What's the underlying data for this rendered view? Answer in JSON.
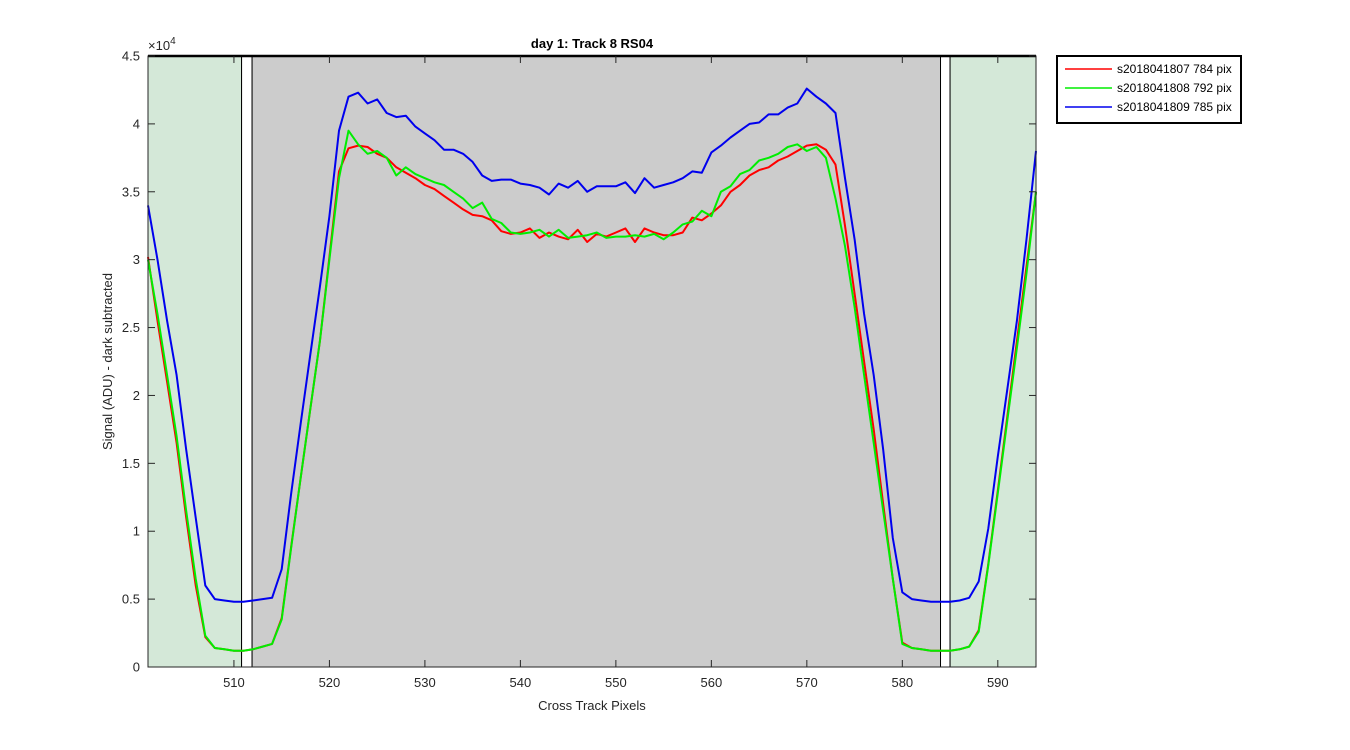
{
  "chart_data": {
    "type": "line",
    "title": "day 1: Track 8  RS04",
    "xlabel": "Cross Track Pixels",
    "ylabel": "Signal (ADU) - dark subtracted",
    "y_exponent_label": "×10",
    "y_exponent": "4",
    "xlim": [
      501,
      594
    ],
    "ylim": [
      0,
      45000
    ],
    "xticks": [
      510,
      520,
      530,
      540,
      550,
      560,
      570,
      580,
      590
    ],
    "yticks": [
      0,
      5000,
      10000,
      15000,
      20000,
      25000,
      30000,
      35000,
      40000,
      45000
    ],
    "ytick_labels": [
      "0",
      "0.5",
      "1",
      "1.5",
      "2",
      "2.5",
      "3",
      "3.5",
      "4",
      "4.5"
    ],
    "grid": false,
    "legend_position": "outside-top-right",
    "regions": [
      {
        "x0": 501,
        "x1": 510.8,
        "color": "#d4e8d8"
      },
      {
        "x0": 510.8,
        "x1": 511.9,
        "color": "#ffffff"
      },
      {
        "x0": 511.9,
        "x1": 584.0,
        "color": "#cccccc"
      },
      {
        "x0": 584.0,
        "x1": 585.0,
        "color": "#ffffff"
      },
      {
        "x0": 585.0,
        "x1": 594,
        "color": "#d4e8d8"
      }
    ],
    "series": [
      {
        "name": "s2018041807 784 pix",
        "color": "#ff0000",
        "x": [
          501,
          502,
          503,
          504,
          505,
          506,
          507,
          508,
          509,
          510,
          511,
          512,
          513,
          514,
          515,
          516,
          517,
          518,
          519,
          520,
          521,
          522,
          523,
          524,
          525,
          526,
          527,
          528,
          529,
          530,
          531,
          532,
          533,
          534,
          535,
          536,
          537,
          538,
          539,
          540,
          541,
          542,
          543,
          544,
          545,
          546,
          547,
          548,
          549,
          550,
          551,
          552,
          553,
          554,
          555,
          556,
          557,
          558,
          559,
          560,
          561,
          562,
          563,
          564,
          565,
          566,
          567,
          568,
          569,
          570,
          571,
          572,
          573,
          574,
          575,
          576,
          577,
          578,
          579,
          580,
          581,
          582,
          583,
          584,
          585,
          586,
          587,
          588,
          589,
          590,
          591,
          592,
          593,
          594
        ],
        "y": [
          30200,
          25500,
          21000,
          16500,
          11000,
          6000,
          2200,
          1400,
          1300,
          1200,
          1200,
          1300,
          1500,
          1700,
          3600,
          8900,
          14000,
          19000,
          24000,
          30200,
          36500,
          38200,
          38400,
          38300,
          37800,
          37500,
          36800,
          36400,
          36000,
          35500,
          35200,
          34700,
          34200,
          33700,
          33300,
          33200,
          32900,
          32100,
          31900,
          32000,
          32300,
          31600,
          32000,
          31700,
          31500,
          32200,
          31300,
          31900,
          31700,
          32000,
          32300,
          31300,
          32300,
          32000,
          31800,
          31800,
          32000,
          33100,
          32900,
          33400,
          34000,
          35000,
          35500,
          36200,
          36600,
          36800,
          37300,
          37600,
          38000,
          38400,
          38500,
          38100,
          37000,
          32500,
          27500,
          22500,
          17500,
          12000,
          6500,
          1800,
          1400,
          1300,
          1200,
          1200,
          1200,
          1300,
          1500,
          2700,
          7600,
          13000,
          18500,
          24000,
          29500,
          35000
        ]
      },
      {
        "name": "s2018041808 792 pix",
        "color": "#00ee00",
        "x": [
          501,
          502,
          503,
          504,
          505,
          506,
          507,
          508,
          509,
          510,
          511,
          512,
          513,
          514,
          515,
          516,
          517,
          518,
          519,
          520,
          521,
          522,
          523,
          524,
          525,
          526,
          527,
          528,
          529,
          530,
          531,
          532,
          533,
          534,
          535,
          536,
          537,
          538,
          539,
          540,
          541,
          542,
          543,
          544,
          545,
          546,
          547,
          548,
          549,
          550,
          551,
          552,
          553,
          554,
          555,
          556,
          557,
          558,
          559,
          560,
          561,
          562,
          563,
          564,
          565,
          566,
          567,
          568,
          569,
          570,
          571,
          572,
          573,
          574,
          575,
          576,
          577,
          578,
          579,
          580,
          581,
          582,
          583,
          584,
          585,
          586,
          587,
          588,
          589,
          590,
          591,
          592,
          593,
          594
        ],
        "y": [
          30000,
          26000,
          21500,
          17000,
          11500,
          6500,
          2300,
          1400,
          1300,
          1200,
          1200,
          1300,
          1500,
          1700,
          3500,
          8800,
          14000,
          19000,
          24000,
          30000,
          36000,
          39500,
          38500,
          37800,
          38000,
          37500,
          36200,
          36800,
          36300,
          36000,
          35700,
          35500,
          35000,
          34500,
          33800,
          34200,
          33000,
          32700,
          32000,
          31900,
          32000,
          32200,
          31700,
          32200,
          31600,
          31700,
          31800,
          32000,
          31600,
          31700,
          31700,
          31800,
          31700,
          31900,
          31500,
          32000,
          32600,
          32800,
          33600,
          33200,
          35000,
          35400,
          36300,
          36600,
          37300,
          37500,
          37800,
          38300,
          38500,
          38000,
          38300,
          37500,
          34500,
          31000,
          26500,
          21500,
          16500,
          11500,
          6500,
          1700,
          1400,
          1300,
          1200,
          1200,
          1200,
          1300,
          1500,
          2600,
          7500,
          12800,
          18200,
          23500,
          29000,
          35000
        ]
      },
      {
        "name": "s2018041809 785 pix",
        "color": "#0000ee",
        "x": [
          501,
          502,
          503,
          504,
          505,
          506,
          507,
          508,
          509,
          510,
          511,
          512,
          513,
          514,
          515,
          516,
          517,
          518,
          519,
          520,
          521,
          522,
          523,
          524,
          525,
          526,
          527,
          528,
          529,
          530,
          531,
          532,
          533,
          534,
          535,
          536,
          537,
          538,
          539,
          540,
          541,
          542,
          543,
          544,
          545,
          546,
          547,
          548,
          549,
          550,
          551,
          552,
          553,
          554,
          555,
          556,
          557,
          558,
          559,
          560,
          561,
          562,
          563,
          564,
          565,
          566,
          567,
          568,
          569,
          570,
          571,
          572,
          573,
          574,
          575,
          576,
          577,
          578,
          579,
          580,
          581,
          582,
          583,
          584,
          585,
          586,
          587,
          588,
          589,
          590,
          591,
          592,
          593,
          594
        ],
        "y": [
          34000,
          30000,
          25500,
          21500,
          16000,
          11000,
          6000,
          5000,
          4900,
          4800,
          4800,
          4900,
          5000,
          5100,
          7200,
          12800,
          18000,
          23000,
          28000,
          33200,
          39500,
          42000,
          42300,
          41500,
          41800,
          40800,
          40500,
          40600,
          39800,
          39300,
          38800,
          38100,
          38100,
          37800,
          37200,
          36200,
          35800,
          35900,
          35900,
          35600,
          35500,
          35300,
          34800,
          35600,
          35300,
          35800,
          35000,
          35400,
          35400,
          35400,
          35700,
          34900,
          36000,
          35300,
          35500,
          35700,
          36000,
          36500,
          36400,
          37900,
          38400,
          39000,
          39500,
          40000,
          40100,
          40700,
          40700,
          41200,
          41500,
          42600,
          42000,
          41500,
          40800,
          36000,
          31500,
          26000,
          21500,
          16000,
          9500,
          5500,
          5000,
          4900,
          4800,
          4800,
          4800,
          4900,
          5100,
          6300,
          10200,
          15500,
          20500,
          25500,
          31500,
          38000
        ]
      }
    ]
  }
}
